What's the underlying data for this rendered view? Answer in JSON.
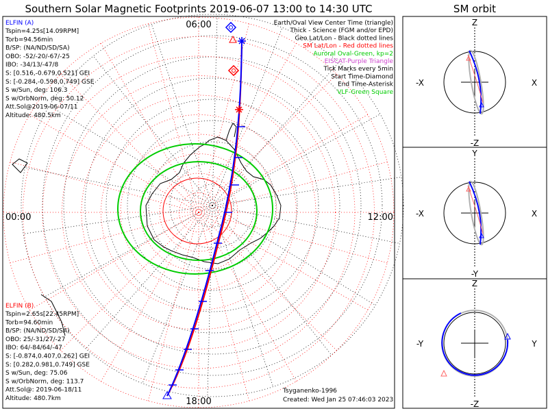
{
  "main": {
    "title": "Southern Solar Magnetic Footprints 2019-06-07 13:00 to 14:30 UTC",
    "tick_labels": {
      "top": "06:00",
      "left": "00:00",
      "right": "12:00",
      "bottom": "18:00"
    },
    "legend": [
      {
        "text": "Earth/Oval View Center Time (triangle)",
        "color": "#000000"
      },
      {
        "text": "Thick - Science (FGM and/or EPD)",
        "color": "#000000"
      },
      {
        "text": "Geo Lat/Lon - Black dotted lines",
        "color": "#000000"
      },
      {
        "text": "SM Lat/Lon - Red dotted lines",
        "color": "#ff0000"
      },
      {
        "text": "Auroral Oval-Green, kp=2",
        "color": "#00cc00"
      },
      {
        "text": "EISCAT-Purple Triangle",
        "color": "#cc44cc"
      },
      {
        "text": "Tick Marks every 5min",
        "color": "#000000"
      },
      {
        "text": "Start Time-Diamond",
        "color": "#000000"
      },
      {
        "text": "End Time-Asterisk",
        "color": "#000000"
      },
      {
        "text": "VLF-Green Square",
        "color": "#00cc00"
      }
    ],
    "probe_a": {
      "name": "ELFIN (A)",
      "color": "#0000ff",
      "lines": [
        "Tspin=4.25s[14.09RPM]",
        "Torb=94.56min",
        "B/SP: (NA/ND/SD/SA)",
        "OBO: -52/-20/-67/-25",
        "IBO: -34/13/-47/8",
        "S: [0.516,-0.679,0.521] GEI",
        "S: [-0.284,-0.598,0.749] GSE",
        "S w/Sun, deg: 106.3",
        "S w/OrbNorm, deg: 50.12",
        "Att.Sol@2019-06-07/11",
        "Altitude: 480.5km"
      ]
    },
    "probe_b": {
      "name": "ELFIN (B)",
      "color": "#ff0000",
      "lines": [
        "Tspin=2.65s[22.45RPM]",
        "Torb=94.60min",
        "B/SP: (NA/ND/SD/SA)",
        "OBO: 25/-31/27/-27",
        "IBO: 64/-84/64/-47",
        "S: [-0.874,0.407,0.262] GEI",
        "S: [0.282,0.981,0.749] GSE",
        "S w/Sun, deg: 75.06",
        "S w/OrbNorm, deg: 113.7",
        "Att.Sol@: 2019-06-18/11",
        "Altitude: 480.7km"
      ]
    },
    "model_label": "Tsyganenko-1996",
    "created_label": "Created: Wed Jan 25 07:46:03 2023"
  },
  "side": {
    "title": "SM orbit",
    "panels": [
      {
        "top": "Z",
        "bottom": "-Z",
        "left": "-X",
        "right": "X"
      },
      {
        "top": "Y",
        "bottom": "-Y",
        "left": "-X",
        "right": "X"
      },
      {
        "top": "Z",
        "bottom": "-Z",
        "left": "-Y",
        "right": "Y"
      }
    ]
  },
  "colors": {
    "probe_a": "#0000ff",
    "probe_b": "#ff0000",
    "auroral_oval": "#00cc00",
    "sm_grid": "#ff0000",
    "geo_grid": "#000000",
    "orbit_shadow": "#b0b0b0",
    "eiscat": "#cc44cc"
  },
  "chart_data": {
    "type": "polar-map",
    "projection": "southern polar view, magnetic local time around rim",
    "time_start": "2019-06-07 13:00",
    "time_end": "2019-06-07 14:30",
    "mlt_labels": [
      "00:00",
      "06:00",
      "12:00",
      "18:00"
    ],
    "auroral_oval_kp": 2,
    "tick_interval_min": 5,
    "series": [
      {
        "name": "ELFIN (A)",
        "color": "#0000ff"
      },
      {
        "name": "ELFIN (B)",
        "color": "#ff0000"
      }
    ]
  }
}
